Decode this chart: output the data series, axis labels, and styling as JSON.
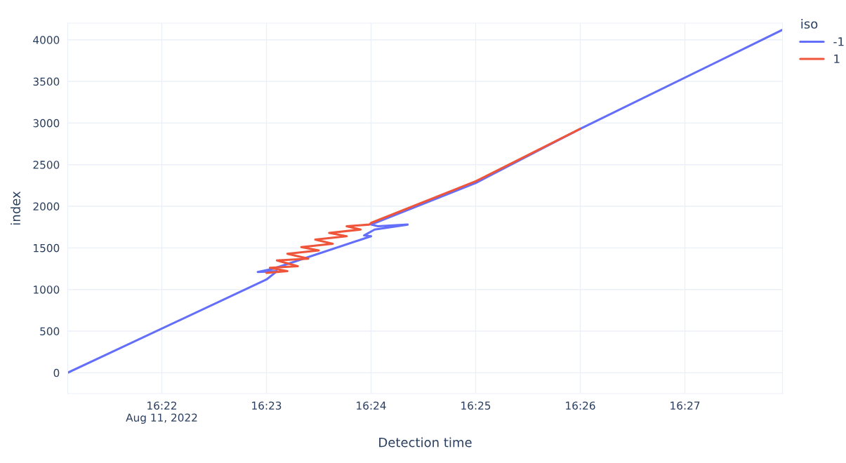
{
  "chart_data": {
    "type": "line",
    "xlabel": "Detection time",
    "ylabel": "index",
    "legend_title": "iso",
    "legend": "top right",
    "grid": true,
    "line_style": "solid",
    "marker": "none",
    "xlim": [
      "2022-08-11T16:21:06",
      "2022-08-11T16:27:56"
    ],
    "xticks": [
      {
        "value": "2022-08-11T16:22",
        "label": "16:22\nAug 11, 2022"
      },
      {
        "value": "2022-08-11T16:23",
        "label": "16:23"
      },
      {
        "value": "2022-08-11T16:24",
        "label": "16:24"
      },
      {
        "value": "2022-08-11T16:25",
        "label": "16:25"
      },
      {
        "value": "2022-08-11T16:26",
        "label": "16:26"
      },
      {
        "value": "2022-08-11T16:27",
        "label": "16:27"
      }
    ],
    "ylim": [
      -250,
      4200
    ],
    "yticks": [
      0,
      500,
      1000,
      1500,
      2000,
      2500,
      3000,
      3500,
      4000
    ],
    "series": [
      {
        "name": "-1",
        "color": "#636efa",
        "x": [
          "2022-08-11T16:21:06",
          "2022-08-11T16:23:00",
          "2022-08-11T16:23:06",
          "2022-08-11T16:22:55",
          "2022-08-11T16:23:04",
          "2022-08-11T16:24:00",
          "2022-08-11T16:23:56",
          "2022-08-11T16:24:02",
          "2022-08-11T16:24:21",
          "2022-08-11T16:24:04",
          "2022-08-11T16:24:00",
          "2022-08-11T16:25:00",
          "2022-08-11T16:26:00",
          "2022-08-11T16:27:56"
        ],
        "values": [
          0,
          1120,
          1220,
          1210,
          1250,
          1640,
          1650,
          1720,
          1780,
          1760,
          1780,
          2280,
          2930,
          4120
        ]
      },
      {
        "name": "1",
        "color": "#ef553b",
        "x": [
          "2022-08-11T16:23:00",
          "2022-08-11T16:23:12",
          "2022-08-11T16:23:02",
          "2022-08-11T16:23:18",
          "2022-08-11T16:23:06",
          "2022-08-11T16:23:24",
          "2022-08-11T16:23:12",
          "2022-08-11T16:23:30",
          "2022-08-11T16:23:20",
          "2022-08-11T16:23:38",
          "2022-08-11T16:23:28",
          "2022-08-11T16:23:46",
          "2022-08-11T16:23:36",
          "2022-08-11T16:23:54",
          "2022-08-11T16:23:46",
          "2022-08-11T16:23:59",
          "2022-08-11T16:24:00",
          "2022-08-11T16:25:00",
          "2022-08-11T16:26:00"
        ],
        "values": [
          1200,
          1220,
          1260,
          1280,
          1350,
          1370,
          1430,
          1470,
          1510,
          1550,
          1600,
          1640,
          1680,
          1720,
          1760,
          1780,
          1800,
          2300,
          2930
        ]
      }
    ]
  }
}
